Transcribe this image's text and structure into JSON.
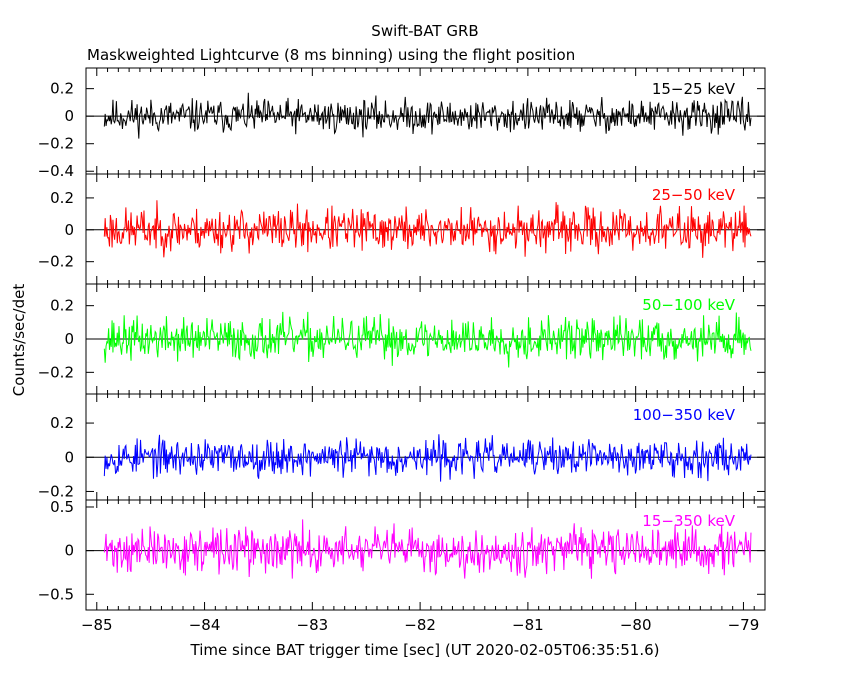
{
  "chart_data": {
    "type": "line",
    "title": "Swift-BAT GRB",
    "subtitle": "Maskweighted Lightcurve (8 ms binning) using the flight position",
    "xlabel": "Time since BAT trigger time [sec] (UT 2020-02-05T06:35:51.6)",
    "ylabel": "Counts/sec/det",
    "xlim": [
      -85.1,
      -78.8
    ],
    "x_ticks": [
      -85,
      -84,
      -83,
      -82,
      -81,
      -80,
      -79
    ],
    "x_tick_labels": [
      "−85",
      "−84",
      "−83",
      "−82",
      "−81",
      "−80",
      "−79"
    ],
    "bin_width_s": 0.008,
    "panels": [
      {
        "name": "15-25 keV",
        "label": "15−25 keV",
        "color": "#000000",
        "ylim": [
          -0.42,
          0.35
        ],
        "yticks": [
          0.2,
          0,
          -0.2,
          -0.4
        ],
        "ytick_labels": [
          "0.2",
          "0",
          "−0.2",
          "−0.4"
        ],
        "noise_sigma": 0.085,
        "seed": 11
      },
      {
        "name": "25-50 keV",
        "label": "25−50 keV",
        "color": "#ff0000",
        "ylim": [
          -0.34,
          0.35
        ],
        "yticks": [
          0.2,
          0,
          -0.2
        ],
        "ytick_labels": [
          "0.2",
          "0",
          "−0.2"
        ],
        "noise_sigma": 0.095,
        "seed": 23
      },
      {
        "name": "50-100 keV",
        "label": "50−100 keV",
        "color": "#00ff00",
        "ylim": [
          -0.33,
          0.33
        ],
        "yticks": [
          0.2,
          0,
          -0.2
        ],
        "ytick_labels": [
          "0.2",
          "0",
          "−0.2"
        ],
        "noise_sigma": 0.09,
        "seed": 37
      },
      {
        "name": "100-350 keV",
        "label": "100−350 keV",
        "color": "#0000ff",
        "ylim": [
          -0.25,
          0.37
        ],
        "yticks": [
          0.2,
          0,
          -0.2
        ],
        "ytick_labels": [
          "0.2",
          "0",
          "−0.2"
        ],
        "noise_sigma": 0.075,
        "seed": 53
      },
      {
        "name": "15-350 keV",
        "label": "15−350 keV",
        "color": "#ff00ff",
        "ylim": [
          -0.68,
          0.58
        ],
        "yticks": [
          0.5,
          0,
          -0.5
        ],
        "ytick_labels": [
          "0.5",
          "0",
          "−0.5"
        ],
        "noise_sigma": 0.18,
        "seed": 71
      }
    ]
  }
}
